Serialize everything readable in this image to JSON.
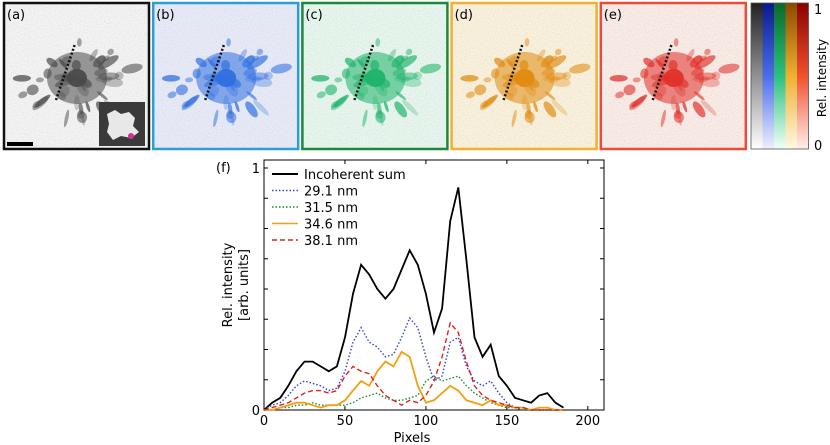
{
  "figure": {
    "panels": [
      {
        "label": "(a)",
        "kind": "grayscale",
        "frame_color": "#111111",
        "tint": "#4a4a4a",
        "bg": "#f6f6f6",
        "has_inset": true,
        "has_scalebar": true
      },
      {
        "label": "(b)",
        "kind": "blue",
        "frame_color": "#2a9fd6",
        "tint": "#2f6fe0",
        "bg": "#e9ecfb"
      },
      {
        "label": "(c)",
        "kind": "green",
        "frame_color": "#1a8a3a",
        "tint": "#1db36a",
        "bg": "#e9f9f0"
      },
      {
        "label": "(d)",
        "kind": "orange",
        "frame_color": "#f0b030",
        "tint": "#e08a10",
        "bg": "#fdf4dd"
      },
      {
        "label": "(e)",
        "kind": "red",
        "frame_color": "#ee4a3a",
        "tint": "#e0302a",
        "bg": "#fdeee8"
      }
    ],
    "colorbar": {
      "label": "Rel. intensity",
      "max_label": "1",
      "min_label": "0",
      "stripes": [
        "#222222",
        "#1030c8",
        "#1aa050",
        "#e8a010",
        "#c81010"
      ]
    }
  },
  "chart_data": {
    "type": "line",
    "panel_label": "(f)",
    "xlabel": "Pixels",
    "ylabel_line1": "Rel. intensity",
    "ylabel_line2": "[arb. units]",
    "xlim": [
      0,
      210
    ],
    "ylim": [
      0,
      1
    ],
    "xticks": [
      0,
      50,
      100,
      150,
      200
    ],
    "yticks_labeled": [
      0,
      1
    ],
    "x": [
      0,
      5,
      10,
      15,
      20,
      25,
      30,
      35,
      40,
      45,
      50,
      55,
      60,
      65,
      70,
      75,
      80,
      85,
      90,
      95,
      100,
      105,
      110,
      115,
      120,
      125,
      130,
      135,
      140,
      145,
      150,
      155,
      160,
      165,
      170,
      175,
      180,
      185
    ],
    "series": [
      {
        "name": "Incoherent sum",
        "color": "#000000",
        "style": "solid",
        "values": [
          0.0,
          0.03,
          0.05,
          0.1,
          0.16,
          0.2,
          0.2,
          0.18,
          0.16,
          0.18,
          0.3,
          0.48,
          0.6,
          0.56,
          0.5,
          0.46,
          0.5,
          0.58,
          0.66,
          0.6,
          0.48,
          0.32,
          0.42,
          0.78,
          0.92,
          0.62,
          0.3,
          0.22,
          0.27,
          0.14,
          0.1,
          0.05,
          0.04,
          0.03,
          0.06,
          0.07,
          0.03,
          0.01
        ]
      },
      {
        "name": "29.1 nm",
        "color": "#3344cc",
        "style": "dotted",
        "values": [
          0.0,
          0.02,
          0.03,
          0.06,
          0.1,
          0.12,
          0.11,
          0.1,
          0.08,
          0.09,
          0.16,
          0.28,
          0.34,
          0.28,
          0.26,
          0.22,
          0.23,
          0.3,
          0.38,
          0.34,
          0.22,
          0.12,
          0.14,
          0.28,
          0.3,
          0.18,
          0.12,
          0.1,
          0.12,
          0.07,
          0.03,
          0.01,
          0.0,
          0.0,
          0.0,
          0.0,
          0.0,
          0.0
        ]
      },
      {
        "name": "31.5 nm",
        "color": "#1a8a2a",
        "style": "dotted",
        "values": [
          0.0,
          0.0,
          0.01,
          0.01,
          0.02,
          0.02,
          0.03,
          0.02,
          0.02,
          0.02,
          0.02,
          0.03,
          0.05,
          0.06,
          0.07,
          0.05,
          0.04,
          0.04,
          0.05,
          0.06,
          0.12,
          0.14,
          0.12,
          0.13,
          0.14,
          0.1,
          0.07,
          0.05,
          0.03,
          0.02,
          0.01,
          0.01,
          0.0,
          0.0,
          0.0,
          0.0,
          0.0,
          0.0
        ]
      },
      {
        "name": "34.6 nm",
        "color": "#f0a010",
        "style": "solid",
        "values": [
          0.0,
          0.0,
          0.01,
          0.02,
          0.03,
          0.03,
          0.02,
          0.01,
          0.02,
          0.02,
          0.04,
          0.08,
          0.12,
          0.1,
          0.16,
          0.2,
          0.18,
          0.24,
          0.22,
          0.1,
          0.03,
          0.04,
          0.07,
          0.1,
          0.08,
          0.04,
          0.03,
          0.02,
          0.04,
          0.02,
          0.02,
          0.01,
          0.01,
          0.0,
          0.01,
          0.01,
          0.0,
          0.0
        ]
      },
      {
        "name": "38.1 nm",
        "color": "#dd2222",
        "style": "dashed",
        "values": [
          0.0,
          0.01,
          0.02,
          0.03,
          0.05,
          0.07,
          0.08,
          0.08,
          0.07,
          0.08,
          0.14,
          0.18,
          0.16,
          0.15,
          0.1,
          0.06,
          0.04,
          0.02,
          0.04,
          0.03,
          0.06,
          0.12,
          0.22,
          0.36,
          0.32,
          0.2,
          0.1,
          0.06,
          0.04,
          0.03,
          0.02,
          0.01,
          0.01,
          0.0,
          0.0,
          0.0,
          0.0,
          0.0
        ]
      }
    ]
  }
}
